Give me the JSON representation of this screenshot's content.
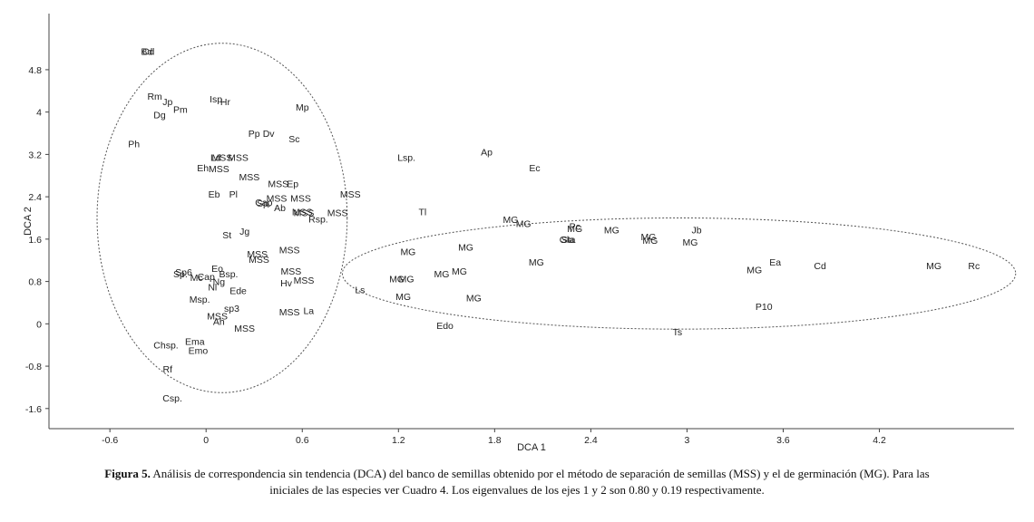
{
  "chart_data": {
    "type": "scatter",
    "xlabel": "DCA 1",
    "ylabel": "DCA 2",
    "xlim": [
      -0.98,
      5.04
    ],
    "ylim": [
      -1.98,
      5.86
    ],
    "x_ticks": [
      -0.6,
      0,
      0.6,
      1.2,
      1.8,
      2.4,
      3,
      3.6,
      4.2
    ],
    "x_tick_labels": [
      "-0.6",
      "0",
      "0.6",
      "1.2",
      "1.8",
      "2.4",
      "3",
      "3.6",
      "4.2"
    ],
    "y_ticks": [
      -1.6,
      -0.8,
      0,
      0.8,
      1.6,
      2.4,
      3.2,
      4,
      4.8
    ],
    "y_tick_labels": [
      "-1.6",
      "-0.8",
      "0",
      "0.8",
      "1.6",
      "2.4",
      "3.2",
      "4",
      "4.8"
    ],
    "grid": false,
    "ellipses": [
      {
        "cx": 0.1,
        "cy": 2.0,
        "rx": 0.78,
        "ry": 3.3
      },
      {
        "cx": 2.95,
        "cy": 0.95,
        "rx": 2.1,
        "ry": 1.05
      }
    ],
    "points": [
      {
        "label": "Bd",
        "x": -0.37,
        "y": 5.15
      },
      {
        "label": "Cd",
        "x": -0.36,
        "y": 5.15
      },
      {
        "label": "Rm",
        "x": -0.32,
        "y": 4.3
      },
      {
        "label": "Jp",
        "x": -0.24,
        "y": 4.2
      },
      {
        "label": "Pm",
        "x": -0.16,
        "y": 4.05
      },
      {
        "label": "Dg",
        "x": -0.29,
        "y": 3.95
      },
      {
        "label": "Isp.",
        "x": 0.07,
        "y": 4.25
      },
      {
        "label": "Hr",
        "x": 0.12,
        "y": 4.2
      },
      {
        "label": "Mp",
        "x": 0.6,
        "y": 4.1
      },
      {
        "label": "Ph",
        "x": -0.45,
        "y": 3.4
      },
      {
        "label": "Pp",
        "x": 0.3,
        "y": 3.6
      },
      {
        "label": "Dv",
        "x": 0.39,
        "y": 3.6
      },
      {
        "label": "Sc",
        "x": 0.55,
        "y": 3.5
      },
      {
        "label": "Lsp.",
        "x": 1.25,
        "y": 3.15
      },
      {
        "label": "Ap",
        "x": 1.75,
        "y": 3.25
      },
      {
        "label": "Ec",
        "x": 2.05,
        "y": 2.95
      },
      {
        "label": "Ld",
        "x": 0.06,
        "y": 3.15
      },
      {
        "label": "MSS",
        "x": 0.1,
        "y": 3.15
      },
      {
        "label": "MSS",
        "x": 0.2,
        "y": 3.15
      },
      {
        "label": "Eh",
        "x": -0.02,
        "y": 2.95
      },
      {
        "label": "MSS",
        "x": 0.08,
        "y": 2.93
      },
      {
        "label": "MSS",
        "x": 0.27,
        "y": 2.78
      },
      {
        "label": "MSS",
        "x": 0.45,
        "y": 2.65
      },
      {
        "label": "Ep",
        "x": 0.54,
        "y": 2.65
      },
      {
        "label": "MSS",
        "x": 0.9,
        "y": 2.45
      },
      {
        "label": "Eb",
        "x": 0.05,
        "y": 2.45
      },
      {
        "label": "Pl",
        "x": 0.17,
        "y": 2.45
      },
      {
        "label": "MSS",
        "x": 0.44,
        "y": 2.38
      },
      {
        "label": "MSS",
        "x": 0.59,
        "y": 2.38
      },
      {
        "label": "Cap",
        "x": 0.36,
        "y": 2.3
      },
      {
        "label": "Sp.",
        "x": 0.36,
        "y": 2.28
      },
      {
        "label": "Ab",
        "x": 0.46,
        "y": 2.2
      },
      {
        "label": "MSS",
        "x": 0.6,
        "y": 2.12
      },
      {
        "label": "MSS",
        "x": 0.61,
        "y": 2.1
      },
      {
        "label": "MSS",
        "x": 0.82,
        "y": 2.1
      },
      {
        "label": "Rsp.",
        "x": 0.7,
        "y": 1.98
      },
      {
        "label": "Tl",
        "x": 1.35,
        "y": 2.12
      },
      {
        "label": "Jg",
        "x": 0.24,
        "y": 1.75
      },
      {
        "label": "St",
        "x": 0.13,
        "y": 1.68
      },
      {
        "label": "MG",
        "x": 1.9,
        "y": 1.97
      },
      {
        "label": "MG",
        "x": 1.98,
        "y": 1.9
      },
      {
        "label": "Pc",
        "x": 2.3,
        "y": 1.85
      },
      {
        "label": "MG",
        "x": 2.3,
        "y": 1.8
      },
      {
        "label": "MG",
        "x": 2.53,
        "y": 1.78
      },
      {
        "label": "Jb",
        "x": 3.06,
        "y": 1.78
      },
      {
        "label": "Gla",
        "x": 2.25,
        "y": 1.6
      },
      {
        "label": "Sta",
        "x": 2.26,
        "y": 1.6
      },
      {
        "label": "MG",
        "x": 2.76,
        "y": 1.65
      },
      {
        "label": "MG",
        "x": 2.77,
        "y": 1.58
      },
      {
        "label": "MG",
        "x": 3.02,
        "y": 1.55
      },
      {
        "label": "MG",
        "x": 1.26,
        "y": 1.37
      },
      {
        "label": "MG",
        "x": 1.62,
        "y": 1.45
      },
      {
        "label": "MSS",
        "x": 0.32,
        "y": 1.32
      },
      {
        "label": "MSS",
        "x": 0.33,
        "y": 1.22
      },
      {
        "label": "MSS",
        "x": 0.52,
        "y": 1.4
      },
      {
        "label": "MG",
        "x": 2.06,
        "y": 1.17
      },
      {
        "label": "Ea",
        "x": 3.55,
        "y": 1.17
      },
      {
        "label": "Cd",
        "x": 3.83,
        "y": 1.1
      },
      {
        "label": "MG",
        "x": 4.54,
        "y": 1.1
      },
      {
        "label": "Rc",
        "x": 4.79,
        "y": 1.1
      },
      {
        "label": "MG",
        "x": 3.42,
        "y": 1.02
      },
      {
        "label": "MG",
        "x": 1.58,
        "y": 1.0
      },
      {
        "label": "MG",
        "x": 1.47,
        "y": 0.95
      },
      {
        "label": "Eo",
        "x": 0.07,
        "y": 1.05
      },
      {
        "label": "Bsp.",
        "x": 0.14,
        "y": 0.95
      },
      {
        "label": "MSS",
        "x": 0.53,
        "y": 1.0
      },
      {
        "label": "Sp6",
        "x": -0.14,
        "y": 0.98
      },
      {
        "label": "Sp.",
        "x": -0.16,
        "y": 0.95
      },
      {
        "label": "Mc",
        "x": -0.06,
        "y": 0.88
      },
      {
        "label": "Cap",
        "x": 0.0,
        "y": 0.9
      },
      {
        "label": "Ng",
        "x": 0.08,
        "y": 0.8
      },
      {
        "label": "Nl",
        "x": 0.04,
        "y": 0.7
      },
      {
        "label": "Ede",
        "x": 0.2,
        "y": 0.63
      },
      {
        "label": "Hv",
        "x": 0.5,
        "y": 0.78
      },
      {
        "label": "MSS",
        "x": 0.61,
        "y": 0.83
      },
      {
        "label": "Ls",
        "x": 0.96,
        "y": 0.65
      },
      {
        "label": "MG",
        "x": 1.19,
        "y": 0.85
      },
      {
        "label": "MG",
        "x": 1.25,
        "y": 0.85
      },
      {
        "label": "MG",
        "x": 1.23,
        "y": 0.52
      },
      {
        "label": "MG",
        "x": 1.67,
        "y": 0.49
      },
      {
        "label": "Msp.",
        "x": -0.04,
        "y": 0.47
      },
      {
        "label": "sp3",
        "x": 0.16,
        "y": 0.3
      },
      {
        "label": "MSS",
        "x": 0.52,
        "y": 0.23
      },
      {
        "label": "La",
        "x": 0.64,
        "y": 0.25
      },
      {
        "label": "P10",
        "x": 3.48,
        "y": 0.33
      },
      {
        "label": "MSS",
        "x": 0.07,
        "y": 0.15
      },
      {
        "label": "Ah",
        "x": 0.08,
        "y": 0.05
      },
      {
        "label": "Edo",
        "x": 1.49,
        "y": -0.03
      },
      {
        "label": "MSS",
        "x": 0.24,
        "y": -0.08
      },
      {
        "label": "Ts",
        "x": 2.94,
        "y": -0.15
      },
      {
        "label": "Ema",
        "x": -0.07,
        "y": -0.33
      },
      {
        "label": "Chsp.",
        "x": -0.25,
        "y": -0.4
      },
      {
        "label": "Emo",
        "x": -0.05,
        "y": -0.5
      },
      {
        "label": "Rf",
        "x": -0.24,
        "y": -0.85
      },
      {
        "label": "Csp.",
        "x": -0.21,
        "y": -1.4
      }
    ]
  },
  "caption": {
    "figure_label": "Figura 5.",
    "text": " Análisis de correspondencia sin tendencia (DCA) del banco de semillas obtenido por el método de separación de semillas (MSS) y el de germinación (MG). Para las iniciales de las especies ver Cuadro 4. Los eigenvalues de los ejes 1 y 2 son 0.80 y 0.19 respectivamente."
  }
}
